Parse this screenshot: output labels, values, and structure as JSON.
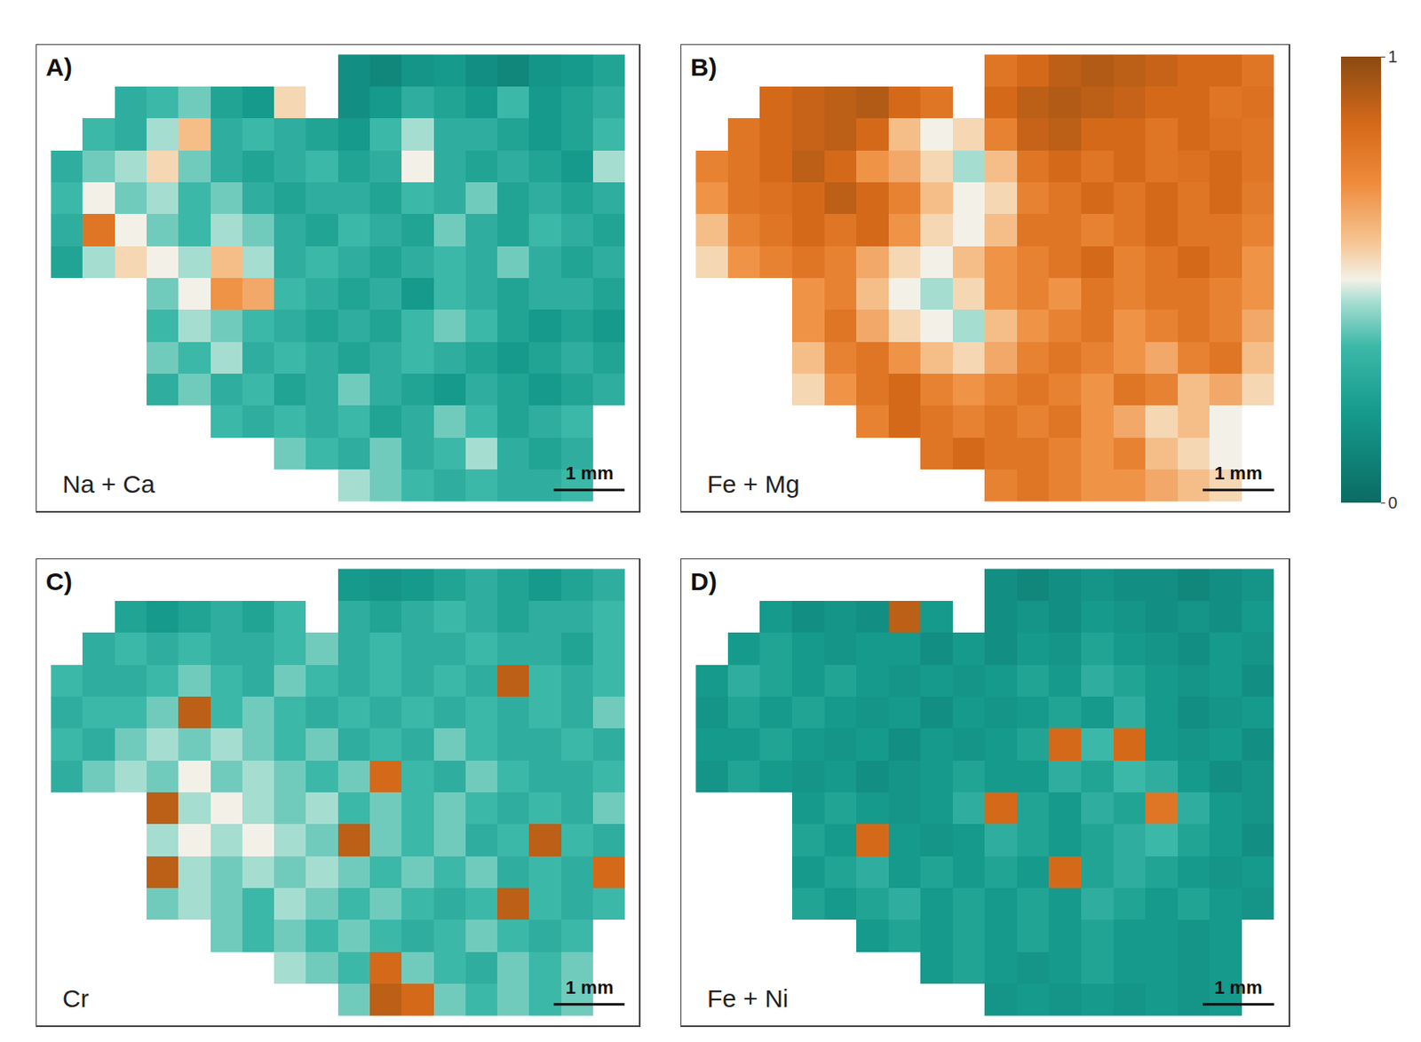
{
  "chart_data": [
    {
      "type": "heatmap",
      "panel": "A)",
      "title": "Na + Ca",
      "tick_labels": false,
      "cell_size": 0.45,
      "scale_bar": {
        "label": "1 mm",
        "length": 1
      },
      "cells": [
        [
          null,
          null,
          null,
          null,
          null,
          null,
          null,
          null,
          null,
          0.15,
          0.12,
          0.18,
          0.2,
          0.15,
          0.12,
          0.18,
          0.2,
          0.25
        ],
        [
          null,
          null,
          0.3,
          0.35,
          0.4,
          0.25,
          0.2,
          0.55,
          null,
          0.15,
          0.2,
          0.3,
          0.25,
          0.2,
          0.35,
          0.2,
          0.25,
          0.3
        ],
        [
          null,
          0.35,
          0.3,
          0.45,
          0.6,
          0.3,
          0.35,
          0.3,
          0.25,
          0.2,
          0.35,
          0.45,
          0.3,
          0.3,
          0.25,
          0.2,
          0.25,
          0.35
        ],
        [
          0.3,
          0.4,
          0.45,
          0.55,
          0.4,
          0.3,
          0.25,
          0.3,
          0.35,
          0.25,
          0.3,
          0.5,
          0.3,
          0.25,
          0.3,
          0.25,
          0.2,
          0.45
        ],
        [
          0.35,
          0.5,
          0.4,
          0.45,
          0.35,
          0.4,
          0.3,
          0.25,
          0.3,
          0.3,
          0.25,
          0.35,
          0.3,
          0.4,
          0.25,
          0.3,
          0.25,
          0.3
        ],
        [
          0.3,
          0.8,
          0.5,
          0.4,
          0.35,
          0.45,
          0.4,
          0.3,
          0.25,
          0.35,
          0.3,
          0.25,
          0.4,
          0.3,
          0.25,
          0.35,
          0.3,
          0.25
        ],
        [
          0.25,
          0.45,
          0.55,
          0.5,
          0.45,
          0.6,
          0.45,
          0.3,
          0.35,
          0.3,
          0.25,
          0.3,
          0.35,
          0.3,
          0.4,
          0.3,
          0.25,
          0.3
        ],
        [
          null,
          null,
          null,
          0.4,
          0.5,
          0.7,
          0.65,
          0.35,
          0.3,
          0.25,
          0.3,
          0.2,
          0.35,
          0.3,
          0.25,
          0.3,
          0.3,
          0.25
        ],
        [
          null,
          null,
          null,
          0.35,
          0.45,
          0.4,
          0.35,
          0.3,
          0.25,
          0.3,
          0.25,
          0.35,
          0.4,
          0.35,
          0.25,
          0.2,
          0.25,
          0.2
        ],
        [
          null,
          null,
          null,
          0.4,
          0.35,
          0.45,
          0.3,
          0.35,
          0.3,
          0.25,
          0.3,
          0.35,
          0.3,
          0.25,
          0.2,
          0.25,
          0.3,
          0.25
        ],
        [
          null,
          null,
          null,
          0.3,
          0.4,
          0.3,
          0.35,
          0.25,
          0.3,
          0.4,
          0.3,
          0.25,
          0.2,
          0.3,
          0.25,
          0.2,
          0.25,
          0.3
        ],
        [
          null,
          null,
          null,
          null,
          null,
          0.35,
          0.3,
          0.35,
          0.3,
          0.35,
          0.25,
          0.3,
          0.4,
          0.35,
          0.25,
          0.3,
          0.35,
          null
        ],
        [
          null,
          null,
          null,
          null,
          null,
          null,
          null,
          0.4,
          0.35,
          0.3,
          0.4,
          0.3,
          0.35,
          0.45,
          0.3,
          0.25,
          0.3,
          null
        ],
        [
          null,
          null,
          null,
          null,
          null,
          null,
          null,
          null,
          null,
          0.45,
          0.4,
          0.35,
          0.3,
          0.35,
          0.3,
          0.3,
          0.35,
          null
        ]
      ]
    },
    {
      "type": "heatmap",
      "panel": "B)",
      "title": "Fe + Mg",
      "tick_labels": false,
      "cell_size": 0.45,
      "scale_bar": {
        "label": "1 mm",
        "length": 1
      },
      "cells": [
        [
          null,
          null,
          null,
          null,
          null,
          null,
          null,
          null,
          null,
          0.8,
          0.85,
          0.9,
          0.92,
          0.9,
          0.88,
          0.85,
          0.85,
          0.8
        ],
        [
          null,
          null,
          0.85,
          0.88,
          0.9,
          0.92,
          0.85,
          0.8,
          null,
          0.85,
          0.9,
          0.92,
          0.9,
          0.88,
          0.85,
          0.85,
          0.8,
          0.82
        ],
        [
          null,
          0.8,
          0.85,
          0.88,
          0.9,
          0.85,
          0.6,
          0.5,
          0.55,
          0.75,
          0.88,
          0.9,
          0.85,
          0.85,
          0.8,
          0.85,
          0.82,
          0.8
        ],
        [
          0.75,
          0.8,
          0.85,
          0.9,
          0.85,
          0.7,
          0.65,
          0.55,
          0.45,
          0.6,
          0.8,
          0.85,
          0.8,
          0.85,
          0.8,
          0.82,
          0.85,
          0.8
        ],
        [
          0.7,
          0.8,
          0.82,
          0.85,
          0.9,
          0.85,
          0.75,
          0.6,
          0.5,
          0.55,
          0.75,
          0.8,
          0.85,
          0.8,
          0.85,
          0.8,
          0.85,
          0.78
        ],
        [
          0.6,
          0.75,
          0.8,
          0.85,
          0.8,
          0.85,
          0.7,
          0.55,
          0.5,
          0.6,
          0.8,
          0.8,
          0.75,
          0.8,
          0.85,
          0.8,
          0.8,
          0.75
        ],
        [
          0.55,
          0.7,
          0.75,
          0.8,
          0.75,
          0.65,
          0.55,
          0.5,
          0.6,
          0.7,
          0.75,
          0.8,
          0.85,
          0.75,
          0.8,
          0.85,
          0.8,
          0.7
        ],
        [
          null,
          null,
          null,
          0.7,
          0.75,
          0.6,
          0.5,
          0.45,
          0.55,
          0.7,
          0.75,
          0.7,
          0.8,
          0.75,
          0.8,
          0.8,
          0.75,
          0.7
        ],
        [
          null,
          null,
          null,
          0.7,
          0.8,
          0.65,
          0.55,
          0.5,
          0.45,
          0.6,
          0.7,
          0.75,
          0.8,
          0.7,
          0.75,
          0.8,
          0.75,
          0.65
        ],
        [
          null,
          null,
          null,
          0.6,
          0.75,
          0.8,
          0.7,
          0.6,
          0.55,
          0.65,
          0.75,
          0.8,
          0.75,
          0.7,
          0.65,
          0.75,
          0.8,
          0.6
        ],
        [
          null,
          null,
          null,
          0.55,
          0.7,
          0.8,
          0.85,
          0.75,
          0.7,
          0.75,
          0.8,
          0.75,
          0.7,
          0.8,
          0.75,
          0.6,
          0.65,
          0.55
        ],
        [
          null,
          null,
          null,
          null,
          null,
          0.75,
          0.85,
          0.8,
          0.75,
          0.8,
          0.75,
          0.8,
          0.7,
          0.65,
          0.55,
          0.6,
          0.5,
          null
        ],
        [
          null,
          null,
          null,
          null,
          null,
          null,
          null,
          0.8,
          0.85,
          0.8,
          0.8,
          0.75,
          0.7,
          0.75,
          0.6,
          0.55,
          0.5,
          null
        ],
        [
          null,
          null,
          null,
          null,
          null,
          null,
          null,
          null,
          null,
          0.75,
          0.8,
          0.75,
          0.7,
          0.7,
          0.65,
          0.6,
          0.55,
          null
        ]
      ]
    },
    {
      "type": "heatmap",
      "panel": "C)",
      "title": "Cr",
      "tick_labels": false,
      "cell_size": 0.45,
      "scale_bar": {
        "label": "1 mm",
        "length": 1
      },
      "cells": [
        [
          null,
          null,
          null,
          null,
          null,
          null,
          null,
          null,
          null,
          0.2,
          0.18,
          0.2,
          0.25,
          0.3,
          0.25,
          0.2,
          0.25,
          0.3
        ],
        [
          null,
          null,
          0.25,
          0.2,
          0.25,
          0.3,
          0.25,
          0.35,
          null,
          0.3,
          0.25,
          0.3,
          0.35,
          0.3,
          0.25,
          0.3,
          0.3,
          0.35
        ],
        [
          null,
          0.3,
          0.35,
          0.3,
          0.35,
          0.3,
          0.3,
          0.35,
          0.4,
          0.3,
          0.35,
          0.3,
          0.3,
          0.35,
          0.3,
          0.3,
          0.25,
          0.35
        ],
        [
          0.35,
          0.3,
          0.3,
          0.35,
          0.4,
          0.35,
          0.3,
          0.4,
          0.35,
          0.3,
          0.35,
          0.3,
          0.35,
          0.3,
          0.9,
          0.35,
          0.3,
          0.35
        ],
        [
          0.3,
          0.35,
          0.35,
          0.4,
          0.9,
          0.35,
          0.4,
          0.35,
          0.3,
          0.35,
          0.3,
          0.35,
          0.3,
          0.35,
          0.3,
          0.35,
          0.3,
          0.4
        ],
        [
          0.35,
          0.3,
          0.4,
          0.45,
          0.4,
          0.45,
          0.4,
          0.35,
          0.4,
          0.3,
          0.35,
          0.3,
          0.4,
          0.35,
          0.3,
          0.3,
          0.35,
          0.3
        ],
        [
          0.3,
          0.4,
          0.45,
          0.4,
          0.5,
          0.4,
          0.45,
          0.4,
          0.35,
          0.4,
          0.85,
          0.35,
          0.3,
          0.4,
          0.35,
          0.3,
          0.3,
          0.35
        ],
        [
          null,
          null,
          null,
          0.9,
          0.45,
          0.5,
          0.45,
          0.4,
          0.45,
          0.35,
          0.4,
          0.35,
          0.4,
          0.35,
          0.3,
          0.35,
          0.3,
          0.4
        ],
        [
          null,
          null,
          null,
          0.45,
          0.5,
          0.45,
          0.5,
          0.45,
          0.4,
          0.9,
          0.4,
          0.35,
          0.4,
          0.3,
          0.35,
          0.9,
          0.35,
          0.3
        ],
        [
          null,
          null,
          null,
          0.9,
          0.45,
          0.4,
          0.45,
          0.4,
          0.45,
          0.4,
          0.35,
          0.4,
          0.35,
          0.4,
          0.3,
          0.35,
          0.3,
          0.85
        ],
        [
          null,
          null,
          null,
          0.4,
          0.45,
          0.4,
          0.35,
          0.45,
          0.4,
          0.35,
          0.4,
          0.35,
          0.3,
          0.35,
          0.9,
          0.35,
          0.3,
          0.35
        ],
        [
          null,
          null,
          null,
          null,
          null,
          0.4,
          0.35,
          0.4,
          0.35,
          0.4,
          0.35,
          0.3,
          0.35,
          0.4,
          0.35,
          0.3,
          0.35,
          null
        ],
        [
          null,
          null,
          null,
          null,
          null,
          null,
          null,
          0.45,
          0.4,
          0.35,
          0.85,
          0.4,
          0.35,
          0.3,
          0.4,
          0.35,
          0.4,
          null
        ],
        [
          null,
          null,
          null,
          null,
          null,
          null,
          null,
          null,
          null,
          0.4,
          0.9,
          0.85,
          0.4,
          0.35,
          0.4,
          0.35,
          0.4,
          null
        ]
      ]
    },
    {
      "type": "heatmap",
      "panel": "D)",
      "title": "Fe + Ni",
      "tick_labels": false,
      "cell_size": 0.45,
      "scale_bar": {
        "label": "1 mm",
        "length": 1
      },
      "cells": [
        [
          null,
          null,
          null,
          null,
          null,
          null,
          null,
          null,
          null,
          0.15,
          0.12,
          0.15,
          0.18,
          0.15,
          0.15,
          0.12,
          0.15,
          0.18
        ],
        [
          null,
          null,
          0.2,
          0.15,
          0.18,
          0.15,
          0.9,
          0.2,
          null,
          0.15,
          0.18,
          0.15,
          0.2,
          0.18,
          0.15,
          0.18,
          0.15,
          0.2
        ],
        [
          null,
          0.2,
          0.25,
          0.2,
          0.18,
          0.2,
          0.2,
          0.15,
          0.2,
          0.15,
          0.2,
          0.18,
          0.25,
          0.2,
          0.18,
          0.15,
          0.2,
          0.18
        ],
        [
          0.2,
          0.3,
          0.25,
          0.2,
          0.25,
          0.2,
          0.18,
          0.2,
          0.18,
          0.2,
          0.25,
          0.2,
          0.3,
          0.25,
          0.2,
          0.18,
          0.2,
          0.15
        ],
        [
          0.18,
          0.25,
          0.2,
          0.25,
          0.2,
          0.18,
          0.2,
          0.15,
          0.2,
          0.18,
          0.2,
          0.25,
          0.2,
          0.3,
          0.2,
          0.15,
          0.18,
          0.2
        ],
        [
          0.2,
          0.2,
          0.25,
          0.2,
          0.18,
          0.2,
          0.15,
          0.2,
          0.18,
          0.2,
          0.25,
          0.85,
          0.35,
          0.85,
          0.2,
          0.18,
          0.2,
          0.15
        ],
        [
          0.18,
          0.25,
          0.2,
          0.18,
          0.2,
          0.15,
          0.18,
          0.2,
          0.25,
          0.2,
          0.2,
          0.3,
          0.25,
          0.35,
          0.3,
          0.2,
          0.15,
          0.18
        ],
        [
          null,
          null,
          null,
          0.2,
          0.25,
          0.2,
          0.18,
          0.2,
          0.3,
          0.85,
          0.25,
          0.2,
          0.3,
          0.25,
          0.8,
          0.3,
          0.2,
          0.18
        ],
        [
          null,
          null,
          null,
          0.25,
          0.2,
          0.85,
          0.2,
          0.18,
          0.2,
          0.3,
          0.25,
          0.2,
          0.25,
          0.3,
          0.35,
          0.25,
          0.2,
          0.15
        ],
        [
          null,
          null,
          null,
          0.2,
          0.25,
          0.3,
          0.2,
          0.25,
          0.2,
          0.25,
          0.2,
          0.85,
          0.25,
          0.3,
          0.25,
          0.2,
          0.18,
          0.2
        ],
        [
          null,
          null,
          null,
          0.25,
          0.2,
          0.25,
          0.3,
          0.2,
          0.25,
          0.2,
          0.25,
          0.2,
          0.3,
          0.25,
          0.2,
          0.25,
          0.2,
          0.18
        ],
        [
          null,
          null,
          null,
          null,
          null,
          0.2,
          0.25,
          0.2,
          0.25,
          0.2,
          0.25,
          0.2,
          0.25,
          0.2,
          0.2,
          0.18,
          0.2,
          null
        ],
        [
          null,
          null,
          null,
          null,
          null,
          null,
          null,
          0.2,
          0.25,
          0.2,
          0.18,
          0.2,
          0.25,
          0.2,
          0.2,
          0.18,
          0.2,
          null
        ],
        [
          null,
          null,
          null,
          null,
          null,
          null,
          null,
          null,
          null,
          0.18,
          0.2,
          0.18,
          0.2,
          0.18,
          0.2,
          0.18,
          0.2,
          null
        ]
      ]
    }
  ],
  "colorbar": {
    "range": [
      0,
      1
    ],
    "ticks": [
      0,
      1
    ]
  }
}
